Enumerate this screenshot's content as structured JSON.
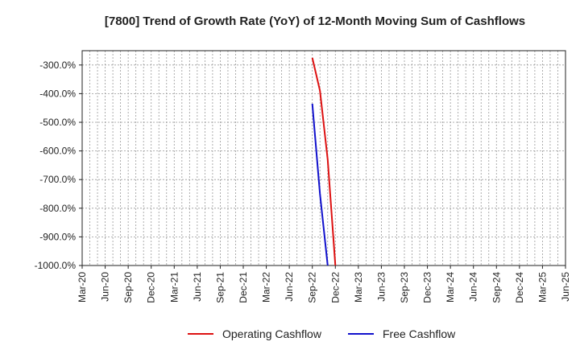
{
  "chart_data": {
    "type": "line",
    "title": "[7800]  Trend of Growth Rate (YoY) of 12-Month Moving Sum of Cashflows",
    "xlabel": "",
    "ylabel": "",
    "x_ticks": [
      "Mar-20",
      "Jun-20",
      "Sep-20",
      "Dec-20",
      "Mar-21",
      "Jun-21",
      "Sep-21",
      "Dec-21",
      "Mar-22",
      "Jun-22",
      "Sep-22",
      "Dec-22",
      "Mar-23",
      "Jun-23",
      "Sep-23",
      "Dec-23",
      "Mar-24",
      "Jun-24",
      "Sep-24",
      "Dec-24",
      "Mar-25",
      "Jun-25"
    ],
    "y_ticks": [
      "-300.0%",
      "-400.0%",
      "-500.0%",
      "-600.0%",
      "-700.0%",
      "-800.0%",
      "-900.0%",
      "-1000.0%"
    ],
    "ylim": [
      -1000,
      -250
    ],
    "grid": true,
    "legend_position": "bottom",
    "series": [
      {
        "name": "Operating Cashflow",
        "color": "#dd1111",
        "points": [
          [
            "2022-09",
            -275
          ],
          [
            "2022-10",
            -390
          ],
          [
            "2022-11",
            -630
          ],
          [
            "2022-12",
            -1000
          ]
        ]
      },
      {
        "name": "Free Cashflow",
        "color": "#1111cc",
        "points": [
          [
            "2022-09",
            -435
          ],
          [
            "2022-10",
            -750
          ],
          [
            "2022-11",
            -1000
          ]
        ]
      }
    ]
  }
}
